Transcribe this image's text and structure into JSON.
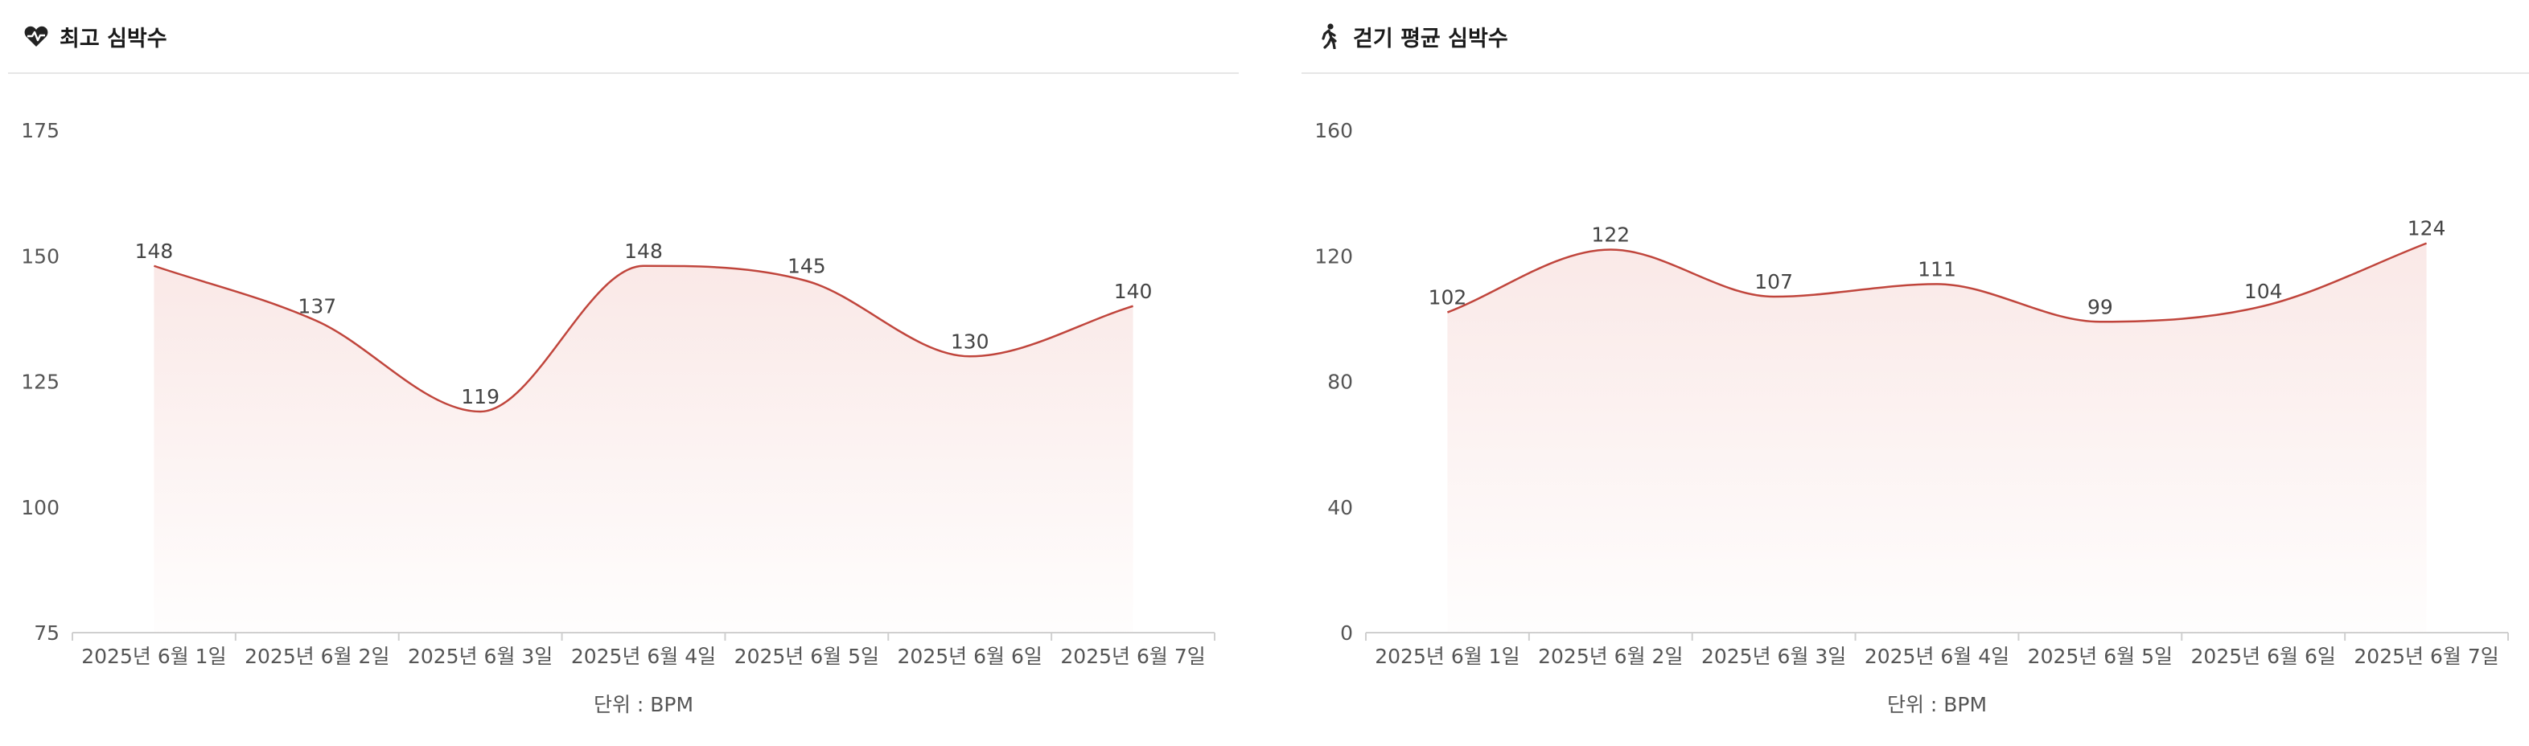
{
  "colors": {
    "line": "#c0453c",
    "fill": "#f5d6d3",
    "axis": "#cfcfcf",
    "header_divider": "#e6e6e6"
  },
  "chart_data": [
    {
      "type": "area",
      "title": "최고 심박수",
      "icon": "heart-pulse-icon",
      "categories": [
        "2025년 6월 1일",
        "2025년 6월 2일",
        "2025년 6월 3일",
        "2025년 6월 4일",
        "2025년 6월 5일",
        "2025년 6월 6일",
        "2025년 6월 7일"
      ],
      "values": [
        148,
        137,
        119,
        148,
        145,
        130,
        140
      ],
      "yticks": [
        75,
        100,
        125,
        150,
        175
      ],
      "ylim": [
        75,
        175
      ],
      "unit_label": "단위 : BPM",
      "grid": false
    },
    {
      "type": "area",
      "title": "걷기 평균 심박수",
      "icon": "walking-person-icon",
      "categories": [
        "2025년 6월 1일",
        "2025년 6월 2일",
        "2025년 6월 3일",
        "2025년 6월 4일",
        "2025년 6월 5일",
        "2025년 6월 6일",
        "2025년 6월 7일"
      ],
      "values": [
        102,
        122,
        107,
        111,
        99,
        104,
        124
      ],
      "yticks": [
        0,
        40,
        80,
        120,
        160
      ],
      "ylim": [
        0,
        160
      ],
      "unit_label": "단위 : BPM",
      "grid": false
    }
  ]
}
